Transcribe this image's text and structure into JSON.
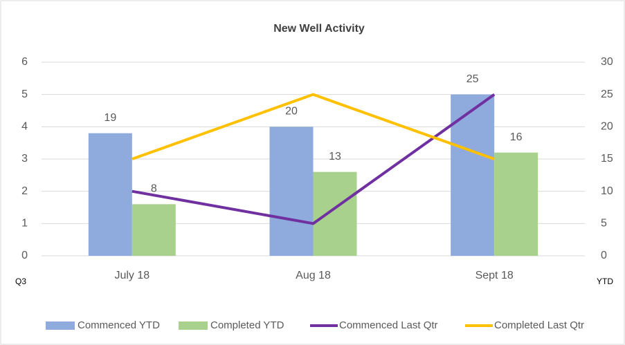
{
  "chart_data": {
    "type": "combo",
    "title": "New Well Activity",
    "categories": [
      "July 18",
      "Aug 18",
      "Sept 18"
    ],
    "ylabel": "Q3",
    "y2label": "YTD",
    "ylim": [
      0,
      6
    ],
    "yticks": [
      0,
      1,
      2,
      3,
      4,
      5,
      6
    ],
    "y2lim": [
      0,
      30
    ],
    "y2ticks": [
      0,
      5,
      10,
      15,
      20,
      25,
      30
    ],
    "grid": true,
    "legend": "bottom",
    "series": [
      {
        "name": "Commenced YTD",
        "type": "bar",
        "axis": "y2",
        "color": "#8faadc",
        "values": [
          19,
          20,
          25
        ]
      },
      {
        "name": "Completed YTD",
        "type": "bar",
        "axis": "y2",
        "color": "#a9d18e",
        "values": [
          8,
          13,
          16
        ]
      },
      {
        "name": "Commenced Last Qtr",
        "type": "line",
        "color": "#7030a0",
        "values": [
          2,
          1,
          5
        ]
      },
      {
        "name": "Completed Last Qtr",
        "type": "line",
        "color": "#ffc000",
        "values": [
          3,
          5,
          3
        ]
      }
    ]
  }
}
